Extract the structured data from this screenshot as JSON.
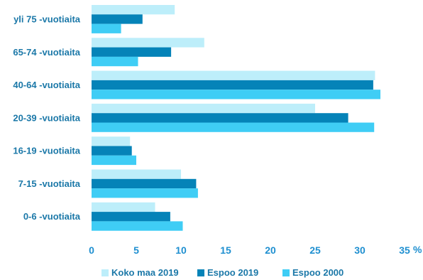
{
  "chart_data": {
    "type": "bar",
    "orientation": "horizontal",
    "categories": [
      "yli 75 -vuotiaita",
      "65-74 -vuotiaita",
      "40-64 -vuotiaita",
      "20-39 -vuotiaita",
      "16-19 -vuotiaita",
      "7-15 -vuotiaita",
      "0-6 -vuotiaita"
    ],
    "series": [
      {
        "name": "Koko maa 2019",
        "color": "#bdeefa",
        "values": [
          9.3,
          12.6,
          31.7,
          25.0,
          4.3,
          10.0,
          7.1
        ]
      },
      {
        "name": "Espoo 2019",
        "color": "#0583b8",
        "values": [
          5.7,
          8.9,
          31.5,
          28.7,
          4.5,
          11.7,
          8.8
        ]
      },
      {
        "name": "Espoo 2000",
        "color": "#3fcdf5",
        "values": [
          3.3,
          5.2,
          32.3,
          31.6,
          5.0,
          11.9,
          10.2
        ]
      }
    ],
    "xlim": [
      0,
      35
    ],
    "xticks": [
      0,
      5,
      10,
      15,
      20,
      25,
      30,
      35
    ],
    "xunit": "%",
    "grid": false,
    "legend": "bottom"
  }
}
